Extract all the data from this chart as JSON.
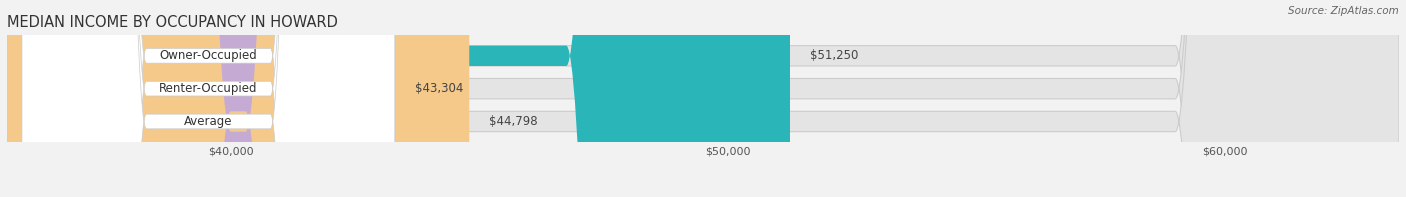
{
  "title": "MEDIAN INCOME BY OCCUPANCY IN HOWARD",
  "source_text": "Source: ZipAtlas.com",
  "categories": [
    "Owner-Occupied",
    "Renter-Occupied",
    "Average"
  ],
  "values": [
    51250,
    43304,
    44798
  ],
  "bar_colors": [
    "#2ab5b8",
    "#c5aad4",
    "#f5c98a"
  ],
  "background_color": "#f2f2f2",
  "bar_bg_color": "#e4e4e4",
  "xlim_min": 35500,
  "xlim_max": 63500,
  "data_min": 0,
  "xticks": [
    40000,
    50000,
    60000
  ],
  "xtick_labels": [
    "$40,000",
    "$50,000",
    "$60,000"
  ],
  "value_labels": [
    "$51,250",
    "$43,304",
    "$44,798"
  ],
  "bar_height": 0.62,
  "bar_gap": 0.18,
  "title_fontsize": 10.5,
  "tick_fontsize": 8,
  "label_fontsize": 8.5,
  "value_fontsize": 8.5
}
